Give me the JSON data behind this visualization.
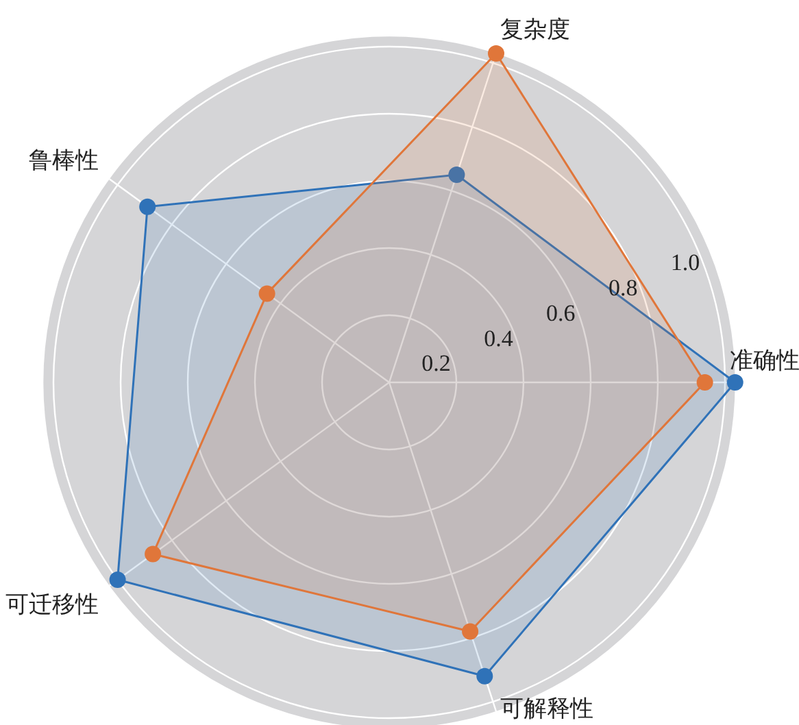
{
  "chart_data": {
    "type": "radar",
    "categories": [
      "复杂度",
      "准确性",
      "可解释性",
      "可迁移性",
      "鲁棒性"
    ],
    "series": [
      {
        "color": "#2f72b8",
        "values": [
          0.65,
          1.03,
          0.92,
          1.0,
          0.89
        ]
      },
      {
        "color": "#e0763a",
        "values": [
          1.03,
          0.94,
          0.78,
          0.87,
          0.45
        ]
      }
    ],
    "ylim": [
      0,
      1.03
    ],
    "yticks": [
      0.2,
      0.4,
      0.6,
      0.8,
      {
        "value": 1,
        "label": "1.0"
      }
    ],
    "grid": true,
    "marker": "circle"
  }
}
